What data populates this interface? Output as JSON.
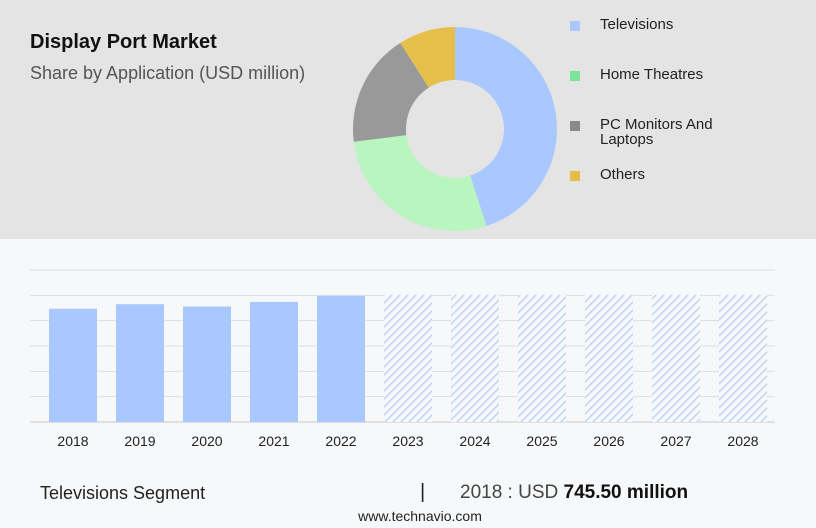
{
  "header": {
    "title": "Display Port Market",
    "subtitle": "Share by Application (USD million)"
  },
  "legend": [
    {
      "label": "Televisions",
      "color": "#a8c8ff"
    },
    {
      "label": "Home Theatres",
      "color": "#7ee39a"
    },
    {
      "label": "PC Monitors And Laptops",
      "color": "#8a8a8a"
    },
    {
      "label": "Others",
      "color": "#e6bf4a"
    }
  ],
  "chart_data": [
    {
      "type": "pie",
      "variant": "donut",
      "categories": [
        "Televisions",
        "Home Theatres",
        "PC Monitors And Laptops",
        "Others"
      ],
      "values": [
        45,
        28,
        18,
        9
      ],
      "unit": "percent share (estimated)",
      "colors": [
        "#a8c8ff",
        "#b8f5bf",
        "#999999",
        "#e6bf4a"
      ],
      "legend_position": "right"
    },
    {
      "type": "bar",
      "categories": [
        "2018",
        "2019",
        "2020",
        "2021",
        "2022",
        "2023",
        "2024",
        "2025",
        "2026",
        "2027",
        "2028"
      ],
      "values": [
        745.5,
        775,
        760,
        790,
        830,
        null,
        null,
        null,
        null,
        null,
        null
      ],
      "forecast": [
        "2023",
        "2024",
        "2025",
        "2026",
        "2027",
        "2028"
      ],
      "ylim": [
        0,
        1000
      ],
      "grid": true,
      "bar_color": "#a8c8ff"
    }
  ],
  "footer": {
    "segment": "Televisions Segment",
    "divider": "|",
    "year_label": "2018 : USD",
    "value_label": "745.50 million",
    "source": "www.technavio.com"
  }
}
